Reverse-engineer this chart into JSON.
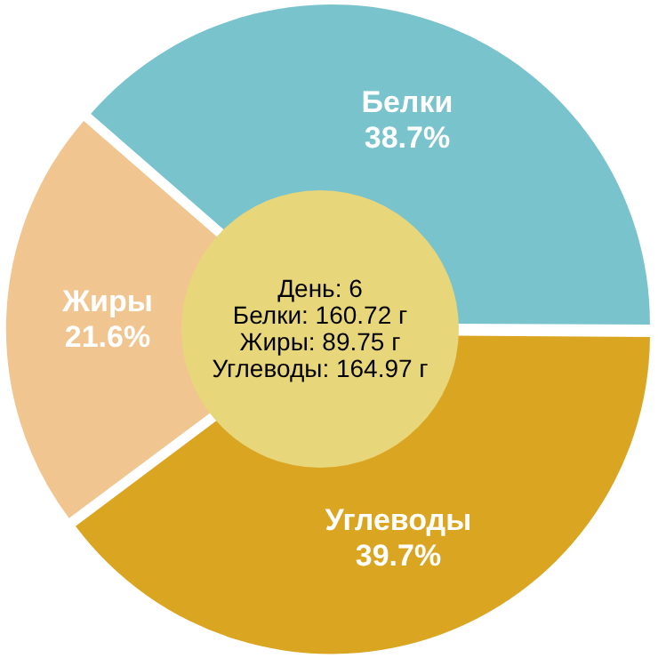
{
  "chart_data": {
    "type": "pie",
    "categories": [
      "Белки",
      "Углеводы",
      "Жиры"
    ],
    "values": [
      38.7,
      39.7,
      21.6
    ],
    "colors": [
      "#79c3cc",
      "#daa521",
      "#f0c590"
    ],
    "value_labels": [
      "38.7%",
      "39.7%",
      "21.6%"
    ],
    "legend": false,
    "annotations": [
      "День: 6",
      "Белки: 160.72 г",
      "Жиры: 89.75 г",
      "Углеводы: 164.97 г"
    ]
  }
}
